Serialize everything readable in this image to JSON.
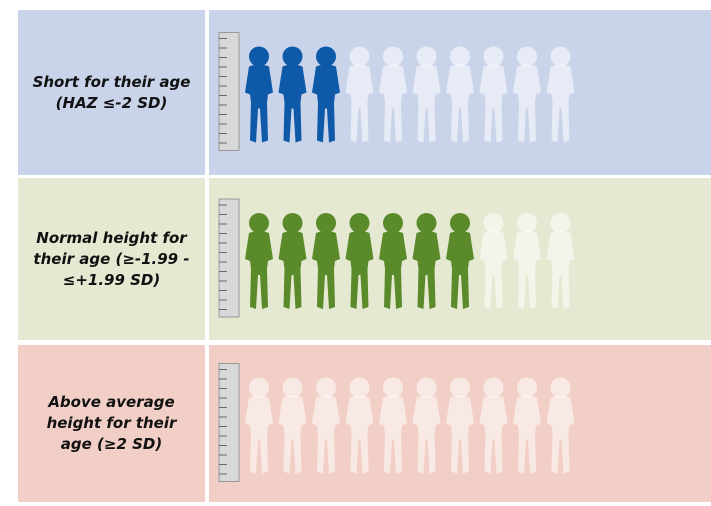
{
  "chart_data": {
    "type": "pictograph",
    "categories": [
      "Short for their age (HAZ ≤-2 SD)",
      "Normal height for their age (≥-1.99 - ≤+1.99 SD)",
      "Above average height for their age (≥2 SD)"
    ],
    "values": [
      3,
      7,
      0
    ],
    "total": 10,
    "colors": [
      "#0f5aa8",
      "#5a8a2a",
      "#e8a898"
    ],
    "backgrounds": [
      "#c9d3ea",
      "#e5e9d2",
      "#f2cfc6"
    ]
  }
}
